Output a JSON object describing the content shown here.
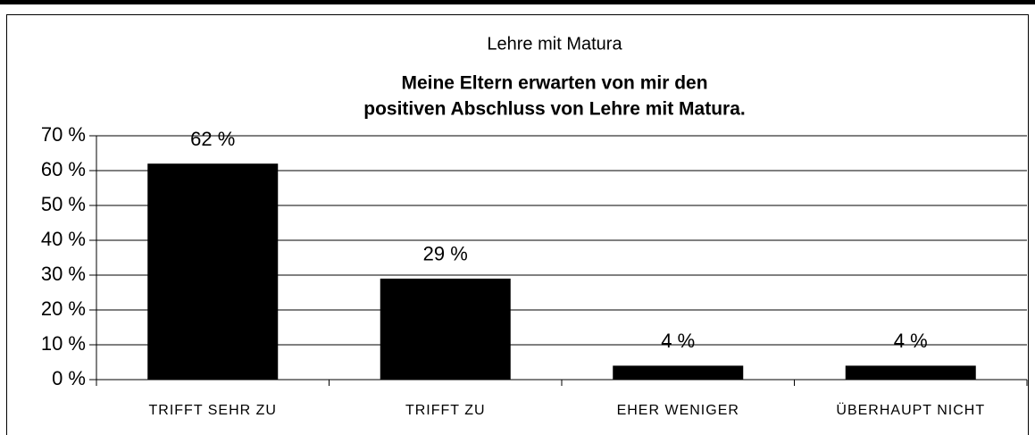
{
  "chart_data": {
    "type": "bar",
    "title": "Lehre mit Matura",
    "subtitle": [
      "Meine Eltern erwarten von mir den",
      "positiven Abschluss von Lehre mit Matura."
    ],
    "categories": [
      "TRIFFT SEHR ZU",
      "TRIFFT ZU",
      "EHER WENIGER",
      "ÜBERHAUPT NICHT"
    ],
    "values": [
      62,
      29,
      4,
      4
    ],
    "value_labels": [
      "62 %",
      "29 %",
      "4 %",
      "4 %"
    ],
    "color": "#000000",
    "ylim": [
      0,
      70
    ],
    "yticks": [
      {
        "value": 0,
        "label": "0 %"
      },
      {
        "value": 10,
        "label": "10 %"
      },
      {
        "value": 20,
        "label": "20 %"
      },
      {
        "value": 30,
        "label": "30 %"
      },
      {
        "value": 40,
        "label": "40 %"
      },
      {
        "value": 50,
        "label": "50 %"
      },
      {
        "value": 60,
        "label": "60 %"
      },
      {
        "value": 70,
        "label": "70 %"
      }
    ],
    "grid": true
  }
}
